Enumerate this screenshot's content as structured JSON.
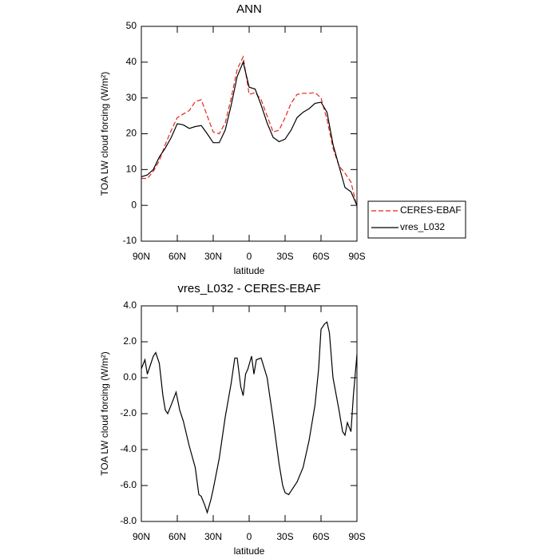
{
  "chart_data": [
    {
      "type": "line",
      "title": "ANN",
      "ylabel": "TOA LW cloud forcing (W/m²)",
      "xlabel": "latitude",
      "x": [
        90,
        85,
        80,
        75,
        70,
        65,
        60,
        55,
        50,
        45,
        40,
        35,
        30,
        25,
        20,
        15,
        10,
        5,
        0,
        -5,
        -10,
        -15,
        -20,
        -25,
        -30,
        -35,
        -40,
        -45,
        -50,
        -55,
        -60,
        -65,
        -70,
        -75,
        -80,
        -85,
        -90
      ],
      "series": [
        {
          "name": "CERES-EBAF",
          "color": "#e8251f",
          "dashed": true,
          "values": [
            7.5,
            7.5,
            9.5,
            12.5,
            17,
            21,
            24.5,
            25.5,
            26.5,
            29,
            29.5,
            25,
            20.5,
            20,
            23,
            30,
            38,
            41.5,
            31,
            31.5,
            29.5,
            25,
            20.5,
            21,
            24.5,
            28.5,
            31,
            31.3,
            31.3,
            31.5,
            30,
            24,
            16,
            11,
            9,
            6.5,
            -0.5
          ]
        },
        {
          "name": "vres_L032",
          "color": "#000000",
          "dashed": false,
          "values": [
            8,
            8.5,
            10,
            13.5,
            16,
            19,
            22.8,
            22.5,
            21.5,
            22,
            22.3,
            20,
            17.5,
            17.5,
            21,
            28,
            36,
            40,
            33,
            32.5,
            28,
            23,
            19,
            17.8,
            18.5,
            21,
            24.5,
            26,
            27,
            28.5,
            28.8,
            26,
            17,
            11,
            5,
            3.8,
            0
          ]
        }
      ],
      "xlim": [
        90,
        -90
      ],
      "xticks": [
        {
          "value": 90,
          "label": "90N"
        },
        {
          "value": 60,
          "label": "60N"
        },
        {
          "value": 30,
          "label": "30N"
        },
        0,
        {
          "value": -30,
          "label": "30S"
        },
        {
          "value": -60,
          "label": "60S"
        },
        {
          "value": -90,
          "label": "90S"
        }
      ],
      "ylim": [
        -10,
        50
      ],
      "yticks": [
        -10,
        0,
        10,
        20,
        30,
        40,
        50
      ],
      "grid": false,
      "legend": "right"
    },
    {
      "type": "line",
      "title": "vres_L032 - CERES-EBAF",
      "ylabel": "TOA LW cloud forcing (W/m²)",
      "xlabel": "latitude",
      "x": [
        90,
        87,
        85,
        80,
        78,
        75,
        72,
        70,
        68,
        65,
        61,
        58,
        55,
        50,
        45,
        42,
        40,
        37,
        35,
        32,
        30,
        25,
        20,
        15,
        12,
        10,
        7,
        5,
        3,
        1,
        -2,
        -4,
        -6,
        -10,
        -15,
        -20,
        -25,
        -28,
        -30,
        -33,
        -35,
        -40,
        -45,
        -50,
        -55,
        -58,
        -60,
        -63,
        -65,
        -67,
        -70,
        -75,
        -78,
        -80,
        -82,
        -85,
        -87,
        -90
      ],
      "series": [
        {
          "color": "#000000",
          "dashed": false,
          "values": [
            0.5,
            1.0,
            0.2,
            1.2,
            1.4,
            0.8,
            -1.0,
            -1.8,
            -2.0,
            -1.5,
            -0.8,
            -1.8,
            -2.4,
            -3.8,
            -5.0,
            -6.5,
            -6.6,
            -7.1,
            -7.5,
            -6.8,
            -6.2,
            -4.5,
            -2.2,
            -0.3,
            1.1,
            1.1,
            -0.5,
            -1.0,
            0.2,
            0.5,
            1.2,
            0.2,
            1.0,
            1.1,
            0.0,
            -2.3,
            -4.8,
            -6.0,
            -6.4,
            -6.5,
            -6.3,
            -5.8,
            -5.0,
            -3.5,
            -1.5,
            0.5,
            2.7,
            3.0,
            3.1,
            2.5,
            0.0,
            -1.8,
            -3.0,
            -3.2,
            -2.5,
            -3.0,
            -1.0,
            1.3
          ]
        }
      ],
      "xlim": [
        90,
        -90
      ],
      "xticks": [
        {
          "value": 90,
          "label": "90N"
        },
        {
          "value": 60,
          "label": "60N"
        },
        {
          "value": 30,
          "label": "30N"
        },
        0,
        {
          "value": -30,
          "label": "30S"
        },
        {
          "value": -60,
          "label": "60S"
        },
        {
          "value": -90,
          "label": "90S"
        }
      ],
      "ylim": [
        -8,
        4
      ],
      "yticks": [
        {
          "value": -8,
          "label": "-8.0"
        },
        {
          "value": -6,
          "label": "-6.0"
        },
        {
          "value": -4,
          "label": "-4.0"
        },
        {
          "value": -2,
          "label": "-2.0"
        },
        {
          "value": 0,
          "label": "0.0"
        },
        {
          "value": 2,
          "label": "2.0"
        },
        {
          "value": 4,
          "label": "4.0"
        }
      ],
      "grid": false
    }
  ]
}
